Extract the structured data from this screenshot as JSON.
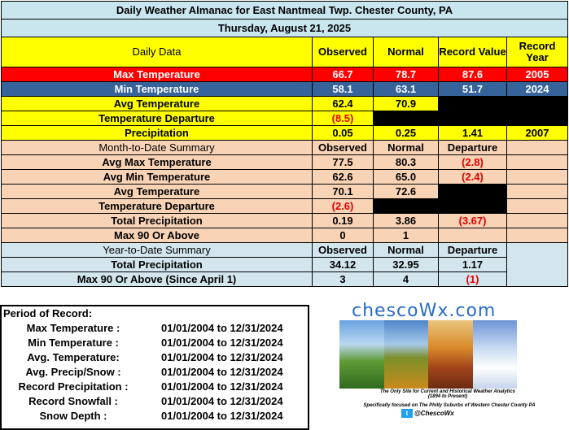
{
  "title": "Daily Weather Almanac for East Nantmeal Twp.  Chester County, PA",
  "date": "Thursday, August 21, 2025",
  "daily": {
    "headers": [
      "Daily Data",
      "Observed",
      "Normal",
      "Record Value",
      "Record Year"
    ],
    "rows": [
      {
        "label": "Max Temperature",
        "observed": "66.7",
        "normal": "78.7",
        "record": "87.6",
        "year": "2005"
      },
      {
        "label": "Min Temperature",
        "observed": "58.1",
        "normal": "63.1",
        "record": "51.7",
        "year": "2024"
      },
      {
        "label": "Avg Temperature",
        "observed": "62.4",
        "normal": "70.9",
        "record": "",
        "year": ""
      },
      {
        "label": "Temperature Departure",
        "observed": "(8.5)",
        "normal": "",
        "record": "",
        "year": ""
      },
      {
        "label": "Precipitation",
        "observed": "0.05",
        "normal": "0.25",
        "record": "1.41",
        "year": "2007"
      }
    ]
  },
  "mtd": {
    "headers": [
      "Month-to-Date Summary",
      "Observed",
      "Normal",
      "Departure"
    ],
    "rows": [
      {
        "label": "Avg Max Temperature",
        "observed": "77.5",
        "normal": "80.3",
        "departure": "(2.8)"
      },
      {
        "label": "Avg Min Temperature",
        "observed": "62.6",
        "normal": "65.0",
        "departure": "(2.4)"
      },
      {
        "label": "Avg Temperature",
        "observed": "70.1",
        "normal": "72.6",
        "departure": ""
      },
      {
        "label": "Temperature Departure",
        "observed": "(2.6)",
        "normal": "",
        "departure": ""
      },
      {
        "label": "Total Precipitation",
        "observed": "0.19",
        "normal": "3.86",
        "departure": "(3.67)"
      },
      {
        "label": "Max 90 Or Above",
        "observed": "0",
        "normal": "1",
        "departure": ""
      }
    ]
  },
  "ytd": {
    "headers": [
      "Year-to-Date Summary",
      "Observed",
      "Normal",
      "Departure"
    ],
    "rows": [
      {
        "label": "Total Precipitation",
        "observed": "34.12",
        "normal": "32.95",
        "departure": "1.17"
      },
      {
        "label": "Max 90 Or Above (Since April 1)",
        "observed": "3",
        "normal": "4",
        "departure": "(1)"
      }
    ]
  },
  "period_of_record": {
    "title": "Period of Record:",
    "rows": [
      {
        "label": "Max Temperature :",
        "range": "01/01/2004 to 12/31/2024"
      },
      {
        "label": "Min Temperature :",
        "range": "01/01/2004 to 12/31/2024"
      },
      {
        "label": "Avg. Temperature:",
        "range": "01/01/2004 to 12/31/2024"
      },
      {
        "label": "Avg. Precip/Snow :",
        "range": "01/01/2004 to 12/31/2024"
      },
      {
        "label": "Record Precipitation :",
        "range": "01/01/2004 to 12/31/2024"
      },
      {
        "label": "Record Snowfall :",
        "range": "01/01/2004 to 12/31/2024"
      },
      {
        "label": "Snow Depth :",
        "range": "01/01/2004 to 12/31/2024"
      }
    ]
  },
  "logo": {
    "brand": "chescoWx.com",
    "tagline1": "The Only Site for Current and Historical Weather Analytics",
    "tagline1b": "(1894 to Present)",
    "tagline2": "Specifically focused on The Philly Suburbs of Western Chester County PA",
    "social": "@ChescoWx"
  },
  "colors": {
    "header_bg": "#c9e6ee",
    "yellow": "#ffff00",
    "max_red": "#ff0000",
    "min_blue": "#35639a",
    "peach": "#f9d3b6",
    "light_blue": "#d3e6ee",
    "departure_red": "#e00000"
  }
}
